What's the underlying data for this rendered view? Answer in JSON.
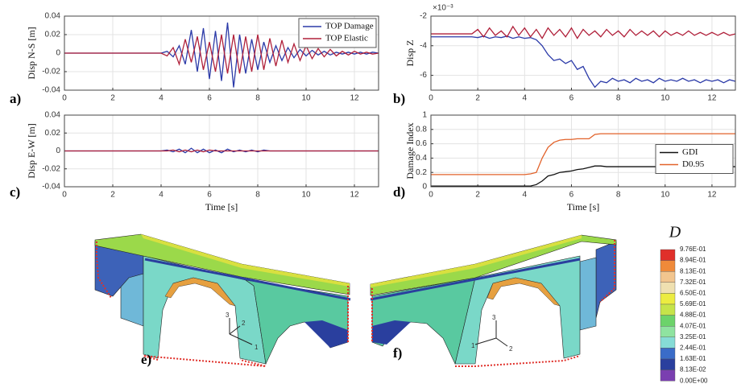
{
  "chart_data": [
    {
      "type": "line",
      "panel_label": "a)",
      "ylabel": "Disp N-S [m]",
      "xlim": [
        0,
        13
      ],
      "xticks": [
        0,
        2,
        4,
        6,
        8,
        10,
        12
      ],
      "ylim": [
        -0.04,
        0.04
      ],
      "yticks": [
        -0.04,
        -0.02,
        0,
        0.02,
        0.04
      ],
      "grid": true,
      "legend": "upper right",
      "x": [
        0,
        0.25,
        0.5,
        0.75,
        1,
        1.25,
        1.5,
        1.75,
        2,
        2.25,
        2.5,
        2.75,
        3,
        3.25,
        3.5,
        3.75,
        4,
        4.25,
        4.5,
        4.75,
        5,
        5.25,
        5.5,
        5.75,
        6,
        6.25,
        6.5,
        6.75,
        7,
        7.25,
        7.5,
        7.75,
        8,
        8.25,
        8.5,
        8.75,
        9,
        9.25,
        9.5,
        9.75,
        10,
        10.25,
        10.5,
        10.75,
        11,
        11.25,
        11.5,
        11.75,
        12,
        12.25,
        12.5,
        12.75,
        13
      ],
      "series": [
        {
          "name": "TOP Damage",
          "color": "#2b3aa8",
          "values": [
            0,
            0,
            0,
            0,
            0,
            0,
            0,
            0,
            0,
            0,
            0,
            0,
            0,
            0,
            0,
            0,
            0,
            0.002,
            -0.004,
            0.008,
            -0.012,
            0.025,
            -0.02,
            0.027,
            -0.028,
            0.024,
            -0.03,
            0.033,
            -0.037,
            0.02,
            -0.022,
            0.015,
            -0.018,
            0.012,
            -0.01,
            0.008,
            -0.008,
            0.006,
            -0.005,
            0.004,
            -0.003,
            0.003,
            -0.002,
            0.002,
            -0.002,
            0.001,
            -0.001,
            0.001,
            -0.001,
            0.001,
            -0.001,
            0.001,
            0
          ]
        },
        {
          "name": "TOP Elastic",
          "color": "#b0203a",
          "values": [
            0,
            0,
            0,
            0,
            0,
            0,
            0,
            0,
            0,
            0,
            0,
            0,
            0,
            0,
            0,
            0,
            0,
            -0.003,
            0.006,
            -0.012,
            0.015,
            -0.01,
            0.018,
            -0.018,
            0.012,
            -0.02,
            0.02,
            -0.022,
            0.02,
            -0.022,
            0.018,
            -0.02,
            0.02,
            -0.018,
            0.016,
            -0.014,
            0.014,
            -0.01,
            0.01,
            -0.008,
            0.008,
            -0.006,
            0.005,
            -0.004,
            0.004,
            -0.003,
            0.002,
            -0.002,
            0.002,
            -0.001,
            0.001,
            -0.001,
            0
          ]
        }
      ]
    },
    {
      "type": "line",
      "panel_label": "b)",
      "ylabel": "Disp Z",
      "y_exponent": "×10⁻³",
      "xlim": [
        0,
        13
      ],
      "xticks": [
        0,
        2,
        4,
        6,
        8,
        10,
        12
      ],
      "ylim": [
        -7,
        -2
      ],
      "yticks": [
        -6,
        -4,
        -2
      ],
      "grid": true,
      "x": [
        0,
        0.25,
        0.5,
        0.75,
        1,
        1.25,
        1.5,
        1.75,
        2,
        2.25,
        2.5,
        2.75,
        3,
        3.25,
        3.5,
        3.75,
        4,
        4.25,
        4.5,
        4.75,
        5,
        5.25,
        5.5,
        5.75,
        6,
        6.25,
        6.5,
        6.75,
        7,
        7.25,
        7.5,
        7.75,
        8,
        8.25,
        8.5,
        8.75,
        9,
        9.25,
        9.5,
        9.75,
        10,
        10.25,
        10.5,
        10.75,
        11,
        11.25,
        11.5,
        11.75,
        12,
        12.25,
        12.5,
        12.75,
        13
      ],
      "series": [
        {
          "name": "TOP Damage",
          "color": "#2b3aa8",
          "values": [
            -3.4,
            -3.4,
            -3.4,
            -3.4,
            -3.4,
            -3.4,
            -3.4,
            -3.4,
            -3.45,
            -3.35,
            -3.5,
            -3.4,
            -3.45,
            -3.35,
            -3.5,
            -3.4,
            -3.5,
            -3.45,
            -3.6,
            -4.0,
            -4.6,
            -5.0,
            -4.9,
            -5.2,
            -5.0,
            -5.6,
            -5.4,
            -6.2,
            -6.8,
            -6.4,
            -6.5,
            -6.2,
            -6.4,
            -6.3,
            -6.5,
            -6.2,
            -6.4,
            -6.3,
            -6.5,
            -6.2,
            -6.4,
            -6.3,
            -6.4,
            -6.2,
            -6.4,
            -6.3,
            -6.5,
            -6.3,
            -6.4,
            -6.3,
            -6.5,
            -6.3,
            -6.4
          ]
        },
        {
          "name": "TOP Elastic",
          "color": "#b0203a",
          "values": [
            -3.2,
            -3.2,
            -3.2,
            -3.2,
            -3.2,
            -3.2,
            -3.2,
            -3.2,
            -2.9,
            -3.4,
            -2.8,
            -3.3,
            -3.0,
            -3.4,
            -2.7,
            -3.3,
            -2.8,
            -3.4,
            -2.9,
            -3.5,
            -2.8,
            -3.3,
            -2.9,
            -3.4,
            -2.8,
            -3.5,
            -2.9,
            -3.3,
            -3.0,
            -3.4,
            -2.9,
            -3.3,
            -3.0,
            -3.4,
            -2.9,
            -3.3,
            -3.0,
            -3.3,
            -3.0,
            -3.4,
            -3.0,
            -3.3,
            -3.1,
            -3.3,
            -3.0,
            -3.3,
            -3.1,
            -3.3,
            -3.1,
            -3.3,
            -3.1,
            -3.3,
            -3.2
          ]
        }
      ]
    },
    {
      "type": "line",
      "panel_label": "c)",
      "ylabel": "Disp E-W [m]",
      "xlabel": "Time [s]",
      "xlim": [
        0,
        13
      ],
      "xticks": [
        0,
        2,
        4,
        6,
        8,
        10,
        12
      ],
      "ylim": [
        -0.04,
        0.04
      ],
      "yticks": [
        -0.04,
        -0.02,
        0,
        0.02,
        0.04
      ],
      "grid": true,
      "x": [
        0,
        0.25,
        0.5,
        0.75,
        1,
        1.25,
        1.5,
        1.75,
        2,
        2.25,
        2.5,
        2.75,
        3,
        3.25,
        3.5,
        3.75,
        4,
        4.25,
        4.5,
        4.75,
        5,
        5.25,
        5.5,
        5.75,
        6,
        6.25,
        6.5,
        6.75,
        7,
        7.25,
        7.5,
        7.75,
        8,
        8.25,
        8.5,
        8.75,
        9,
        9.25,
        9.5,
        9.75,
        10,
        10.25,
        10.5,
        10.75,
        11,
        11.25,
        11.5,
        11.75,
        12,
        12.25,
        12.5,
        12.75,
        13
      ],
      "series": [
        {
          "name": "TOP Damage",
          "color": "#2b3aa8",
          "values": [
            0,
            0,
            0,
            0,
            0,
            0,
            0,
            0,
            0,
            0,
            0,
            0,
            0,
            0,
            0,
            0,
            0,
            0.001,
            -0.001,
            0.002,
            -0.002,
            0.003,
            -0.002,
            0.002,
            -0.002,
            0.001,
            -0.002,
            0.002,
            -0.001,
            0.001,
            -0.001,
            0.001,
            -0.001,
            0.001,
            0,
            0,
            0,
            0,
            0,
            0,
            0,
            0,
            0,
            0,
            0,
            0,
            0,
            0,
            0,
            0,
            0,
            0,
            0
          ]
        },
        {
          "name": "TOP Elastic",
          "color": "#b0203a",
          "values": [
            0,
            0,
            0,
            0,
            0,
            0,
            0,
            0,
            0,
            0,
            0,
            0,
            0,
            0,
            0,
            0,
            0,
            0,
            0.001,
            -0.001,
            0.001,
            -0.001,
            0.001,
            -0.001,
            0.001,
            0,
            0,
            0,
            0,
            0,
            0,
            0,
            0,
            0,
            0,
            0,
            0,
            0,
            0,
            0,
            0,
            0,
            0,
            0,
            0,
            0,
            0,
            0,
            0,
            0,
            0,
            0,
            0
          ]
        }
      ]
    },
    {
      "type": "line",
      "panel_label": "d)",
      "ylabel": "Damage Index",
      "xlabel": "Time [s]",
      "xlim": [
        0,
        13
      ],
      "xticks": [
        0,
        2,
        4,
        6,
        8,
        10,
        12
      ],
      "ylim": [
        0,
        1
      ],
      "yticks": [
        0,
        0.2,
        0.4,
        0.6,
        0.8,
        1
      ],
      "grid": true,
      "legend": "center right",
      "x": [
        0,
        0.25,
        0.5,
        0.75,
        1,
        1.25,
        1.5,
        1.75,
        2,
        2.25,
        2.5,
        2.75,
        3,
        3.25,
        3.5,
        3.75,
        4,
        4.25,
        4.5,
        4.75,
        5,
        5.25,
        5.5,
        5.75,
        6,
        6.25,
        6.5,
        6.75,
        7,
        7.25,
        7.5,
        7.75,
        8,
        8.25,
        8.5,
        8.75,
        9,
        9.25,
        9.5,
        9.75,
        10,
        10.25,
        10.5,
        10.75,
        11,
        11.25,
        11.5,
        11.75,
        12,
        12.25,
        12.5,
        12.75,
        13
      ],
      "series": [
        {
          "name": "GDI",
          "color": "#111111",
          "values": [
            0.01,
            0.01,
            0.01,
            0.01,
            0.01,
            0.01,
            0.01,
            0.01,
            0.01,
            0.01,
            0.01,
            0.01,
            0.01,
            0.01,
            0.01,
            0.01,
            0.01,
            0.01,
            0.03,
            0.08,
            0.15,
            0.17,
            0.2,
            0.21,
            0.22,
            0.24,
            0.25,
            0.27,
            0.29,
            0.29,
            0.28,
            0.28,
            0.28,
            0.28,
            0.28,
            0.28,
            0.28,
            0.28,
            0.28,
            0.28,
            0.28,
            0.28,
            0.28,
            0.28,
            0.28,
            0.28,
            0.28,
            0.28,
            0.28,
            0.28,
            0.28,
            0.28,
            0.28
          ]
        },
        {
          "name": "D0.95",
          "color": "#e2622a",
          "values": [
            0.17,
            0.17,
            0.17,
            0.17,
            0.17,
            0.17,
            0.17,
            0.17,
            0.17,
            0.17,
            0.17,
            0.17,
            0.17,
            0.17,
            0.17,
            0.17,
            0.17,
            0.18,
            0.2,
            0.4,
            0.55,
            0.62,
            0.65,
            0.66,
            0.66,
            0.67,
            0.67,
            0.67,
            0.73,
            0.74,
            0.74,
            0.74,
            0.74,
            0.74,
            0.74,
            0.74,
            0.74,
            0.74,
            0.74,
            0.74,
            0.74,
            0.74,
            0.74,
            0.74,
            0.74,
            0.74,
            0.74,
            0.74,
            0.74,
            0.74,
            0.74,
            0.74,
            0.74
          ]
        }
      ]
    }
  ],
  "bridges": {
    "labels": [
      "e)",
      "f)"
    ],
    "triad_e": [
      "3",
      "2",
      "1"
    ],
    "triad_f": [
      "3",
      "1",
      "2"
    ]
  },
  "colorbar": {
    "title": "D",
    "labels": [
      "9.76E-01",
      "8.94E-01",
      "8.13E-01",
      "7.32E-01",
      "6.50E-01",
      "5.69E-01",
      "4.88E-01",
      "4.07E-01",
      "3.25E-01",
      "2.44E-01",
      "1.63E-01",
      "8.13E-02",
      "0.00E+00"
    ],
    "colors": [
      "#e0302a",
      "#ef8a3a",
      "#f2c58e",
      "#efe0b0",
      "#ecec40",
      "#c6e44a",
      "#6cd36a",
      "#8fe3a0",
      "#86dcd6",
      "#3a6cc8",
      "#2a3f9e",
      "#7a3fb0"
    ]
  }
}
